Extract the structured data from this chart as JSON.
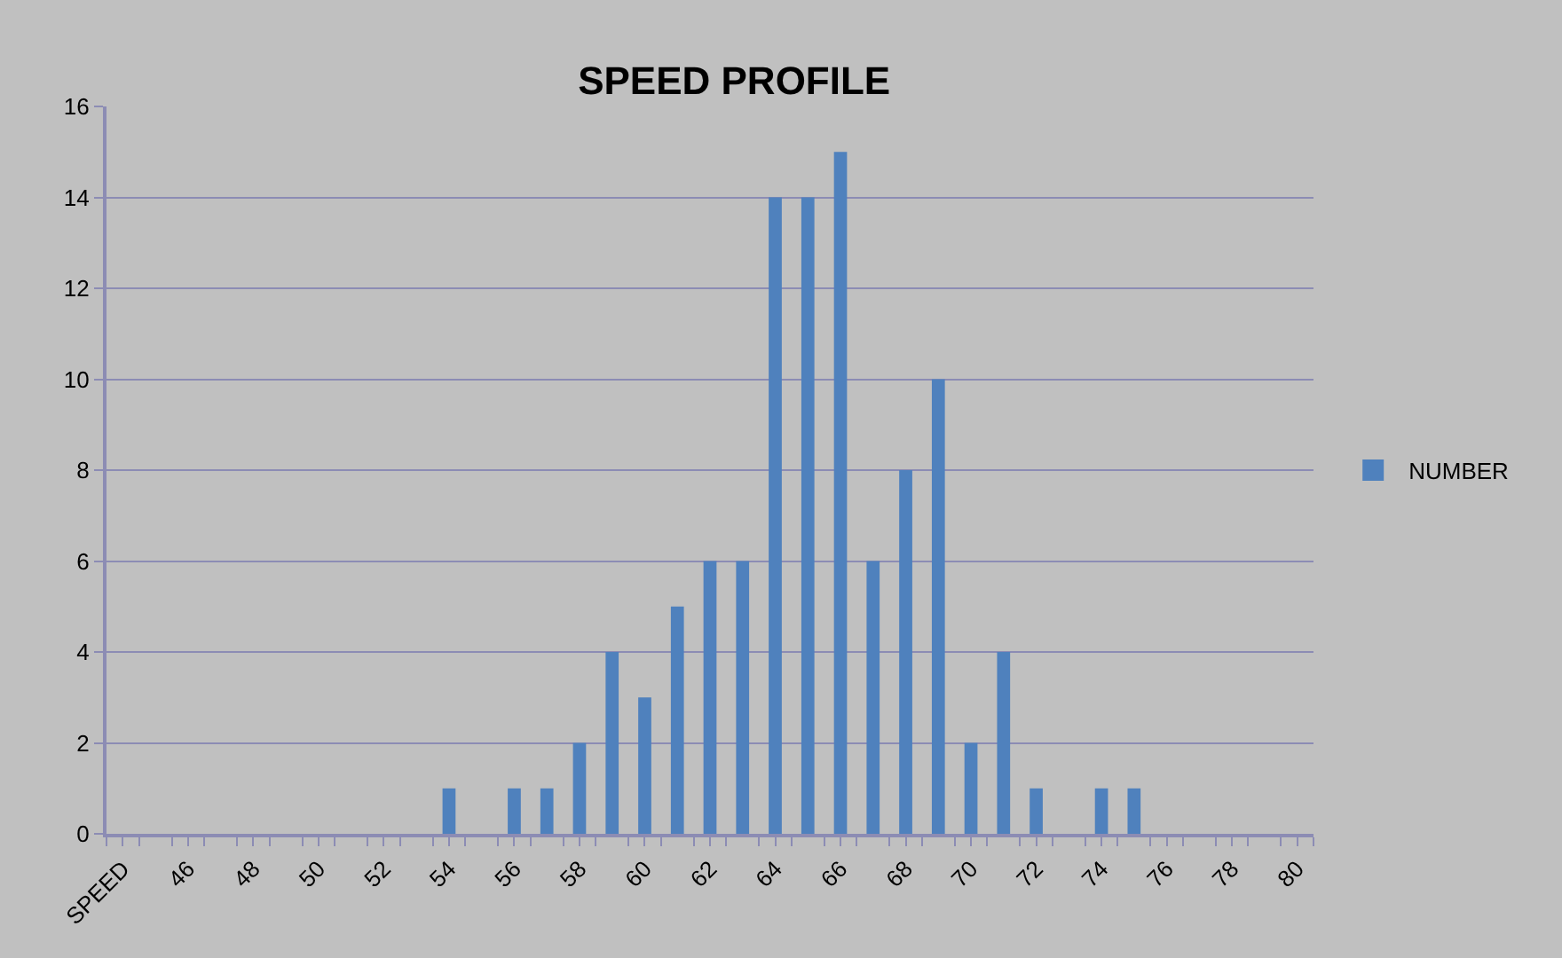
{
  "chart_data": {
    "type": "bar",
    "title": "SPEED PROFILE",
    "categories": [
      "SPEED",
      null,
      "46",
      null,
      "48",
      null,
      "50",
      null,
      "52",
      null,
      "54",
      null,
      "56",
      null,
      "58",
      null,
      "60",
      null,
      "62",
      null,
      "64",
      null,
      "66",
      null,
      "68",
      null,
      "70",
      null,
      "72",
      null,
      "74",
      null,
      "76",
      null,
      "78",
      null,
      "80"
    ],
    "series": [
      {
        "name": "NUMBER",
        "color": "#4f81bd",
        "values": [
          0,
          0,
          0,
          0,
          0,
          0,
          0,
          0,
          0,
          0,
          1,
          0,
          1,
          1,
          2,
          4,
          3,
          5,
          6,
          6,
          14,
          14,
          15,
          6,
          8,
          10,
          2,
          4,
          1,
          0,
          1,
          1,
          0,
          0,
          0,
          0,
          0
        ]
      }
    ],
    "ylim": [
      0,
      16
    ],
    "yticks": [
      0,
      2,
      4,
      6,
      8,
      10,
      12,
      14,
      16
    ],
    "grid": "y",
    "legend": "right"
  }
}
